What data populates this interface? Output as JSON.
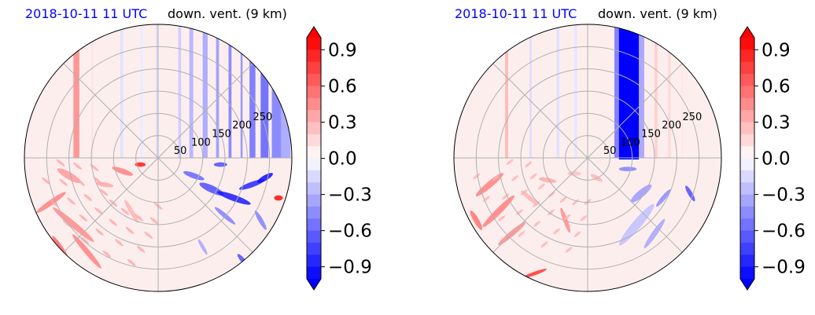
{
  "chart_data": [
    {
      "type": "heatmap",
      "projection": "polar",
      "title_left": "2018-10-11 11 UTC",
      "title_right": "down. vent. (9 km)",
      "radial_ticks": [
        "50",
        "100",
        "150",
        "200",
        "250"
      ],
      "radial_values": [
        50,
        100,
        150,
        200,
        250
      ],
      "radial_max": 300,
      "grid": true,
      "colorbar": {
        "colormap": "bwr",
        "range": [
          -1.0,
          1.0
        ],
        "extend": "both",
        "ticks": [
          "0.9",
          "0.6",
          "0.3",
          "0.0",
          "−0.3",
          "−0.6",
          "−0.9"
        ],
        "tick_values": [
          0.9,
          0.6,
          0.3,
          0.0,
          -0.3,
          -0.6,
          -0.9
        ]
      }
    },
    {
      "type": "heatmap",
      "projection": "polar",
      "title_left": "2018-10-11 11 UTC",
      "title_right": "down. vent. (9 km)",
      "radial_ticks": [
        "50",
        "100",
        "150",
        "200",
        "250"
      ],
      "radial_values": [
        50,
        100,
        150,
        200,
        250
      ],
      "radial_max": 300,
      "grid": true,
      "colorbar": {
        "colormap": "bwr",
        "range": [
          -1.0,
          1.0
        ],
        "extend": "both",
        "ticks": [
          "0.9",
          "0.6",
          "0.3",
          "0.0",
          "−0.3",
          "−0.6",
          "−0.9"
        ],
        "tick_values": [
          0.9,
          0.6,
          0.3,
          0.0,
          -0.3,
          -0.6,
          -0.9
        ]
      }
    }
  ],
  "colors": {
    "positive": "#ff0000",
    "negative": "#0000ff",
    "neutral": "#ffffff",
    "time_title": "#0000ff"
  }
}
